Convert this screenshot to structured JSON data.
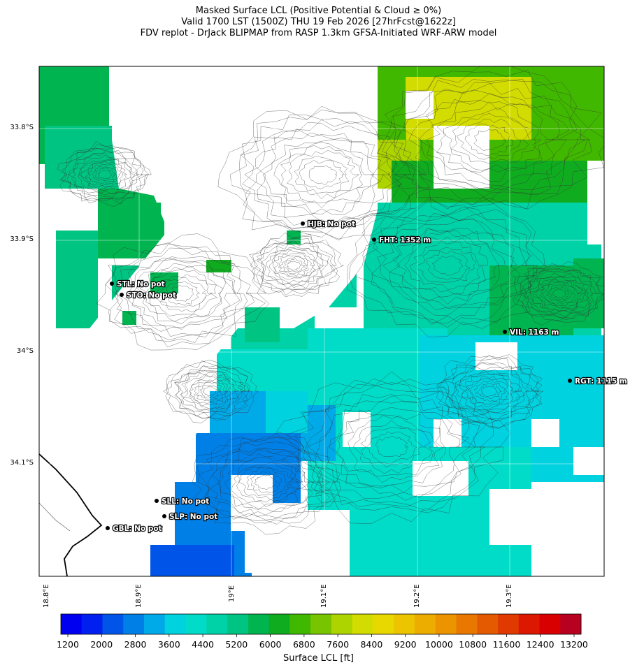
{
  "title": {
    "line1": "Masked Surface LCL (Positive Potential & Cloud ≥ 0%)",
    "line2": "Valid 1700 LST (1500Z) THU 19 Feb 2026 [27hrFcst@1622z]",
    "line3": "FDV replot - DrJack BLIPMAP from RASP 1.3km GFSA-Initiated WRF-ARW model"
  },
  "map": {
    "lat_labels": [
      "33.8°S",
      "33.9°S",
      "34°S",
      "34.1°S"
    ],
    "lon_labels": [
      "18.8°E",
      "18.9°E",
      "19°E",
      "19.1°E",
      "19.2°E",
      "19.3°E"
    ],
    "stations": [
      {
        "id": "HJB",
        "label": "HJB: No pot"
      },
      {
        "id": "FHT",
        "label": "FHT: 1352 m"
      },
      {
        "id": "STL",
        "label": "STL: No pot"
      },
      {
        "id": "STO",
        "label": "STO: No pot"
      },
      {
        "id": "VIL",
        "label": "VIL: 1163 m"
      },
      {
        "id": "RGT",
        "label": "RGT: 1115 m"
      },
      {
        "id": "SLL",
        "label": "SLL: No pot"
      },
      {
        "id": "SLP",
        "label": "SLP: No pot"
      },
      {
        "id": "GBL",
        "label": "GBL: No pot"
      }
    ]
  },
  "colorbar": {
    "ticks": [
      "1200",
      "2000",
      "2800",
      "3600",
      "4400",
      "5200",
      "6000",
      "6800",
      "7600",
      "8400",
      "9200",
      "10000",
      "10800",
      "11600",
      "12400",
      "13200"
    ],
    "colors": [
      "#0000f0",
      "#0020f0",
      "#0055e8",
      "#0080e6",
      "#00aae8",
      "#00d2e0",
      "#00dcc8",
      "#00d2a8",
      "#00c482",
      "#00b450",
      "#10ac20",
      "#40b800",
      "#78c400",
      "#aed400",
      "#d2dc00",
      "#e8d800",
      "#ecc400",
      "#ecac00",
      "#ec9400",
      "#e87800",
      "#e45a00",
      "#e03a00",
      "#dc1800",
      "#d80000",
      "#b80020"
    ],
    "label": "Surface LCL [ft]"
  }
}
